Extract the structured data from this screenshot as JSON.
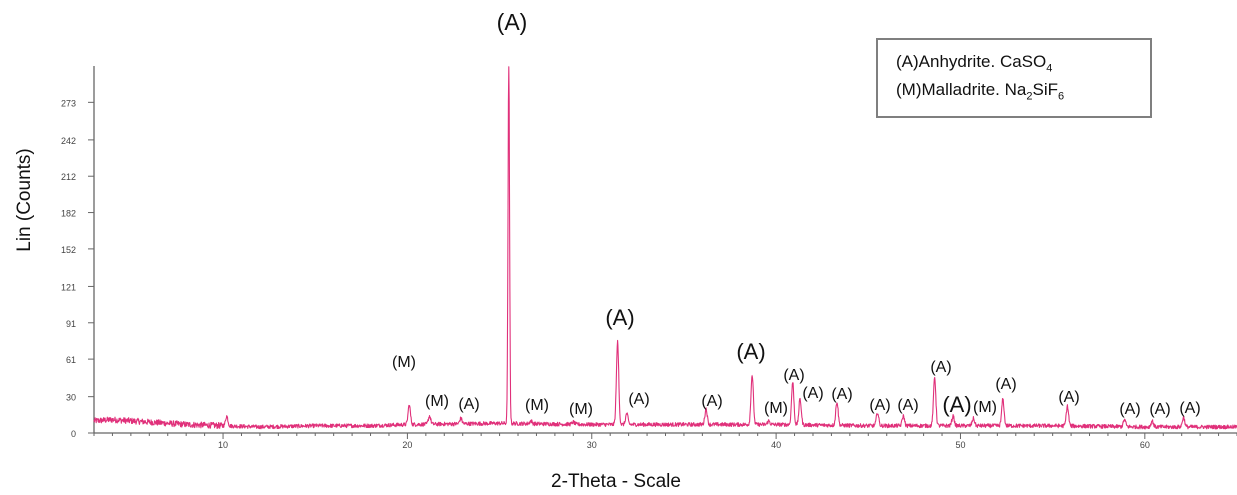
{
  "chart_data": {
    "type": "line",
    "title": "",
    "xlabel": "2-Theta - Scale",
    "ylabel": "Lin (Counts)",
    "xlim": [
      3,
      65
    ],
    "ylim": [
      0,
      303
    ],
    "x_ticks": [
      10,
      20,
      30,
      40,
      50,
      60
    ],
    "y_ticks": [
      0,
      30,
      61,
      91,
      121,
      152,
      182,
      212,
      242,
      273
    ],
    "line_color": "#e0307a",
    "baseline": {
      "points": [
        [
          3,
          10
        ],
        [
          4,
          11
        ],
        [
          6,
          9
        ],
        [
          8,
          7
        ],
        [
          10,
          6
        ],
        [
          12,
          5
        ],
        [
          15,
          6
        ],
        [
          18,
          6
        ],
        [
          20,
          7
        ],
        [
          25,
          8
        ],
        [
          30,
          7
        ],
        [
          35,
          7
        ],
        [
          40,
          7
        ],
        [
          45,
          6
        ],
        [
          50,
          6
        ],
        [
          55,
          6
        ],
        [
          60,
          5
        ],
        [
          65,
          5
        ]
      ]
    },
    "peaks": [
      {
        "x": 10.2,
        "y": 14
      },
      {
        "x": 20.1,
        "y": 23,
        "label": "(M)"
      },
      {
        "x": 21.2,
        "y": 14,
        "label": "(M)"
      },
      {
        "x": 22.9,
        "y": 12,
        "label": "(A)"
      },
      {
        "x": 25.5,
        "y": 303,
        "label": "(A)"
      },
      {
        "x": 26.7,
        "y": 10,
        "label": "(M)"
      },
      {
        "x": 29.0,
        "y": 9,
        "label": "(M)"
      },
      {
        "x": 31.4,
        "y": 75,
        "label": "(A)"
      },
      {
        "x": 31.9,
        "y": 16,
        "label": "(A)"
      },
      {
        "x": 36.2,
        "y": 20,
        "label": "(A)"
      },
      {
        "x": 38.7,
        "y": 48,
        "label": "(A)"
      },
      {
        "x": 39.6,
        "y": 10,
        "label": "(M)"
      },
      {
        "x": 40.9,
        "y": 42,
        "label": "(A)"
      },
      {
        "x": 41.3,
        "y": 28,
        "label": "(A)"
      },
      {
        "x": 43.3,
        "y": 26,
        "label": "(A)"
      },
      {
        "x": 45.5,
        "y": 17,
        "label": "(A)"
      },
      {
        "x": 46.9,
        "y": 14,
        "label": "(A)"
      },
      {
        "x": 48.6,
        "y": 46,
        "label": "(A)"
      },
      {
        "x": 49.6,
        "y": 14,
        "label": "(A)"
      },
      {
        "x": 50.7,
        "y": 12,
        "label": "(M)"
      },
      {
        "x": 52.3,
        "y": 28,
        "label": "(A)"
      },
      {
        "x": 55.8,
        "y": 22,
        "label": "(A)"
      },
      {
        "x": 58.9,
        "y": 11,
        "label": "(A)"
      },
      {
        "x": 60.4,
        "y": 10,
        "label": "(A)"
      },
      {
        "x": 62.1,
        "y": 13,
        "label": "(A)"
      }
    ],
    "legend": [
      {
        "marker": "(A)",
        "name": "Anhydrite. ",
        "formula": [
          {
            "t": "CaSO"
          },
          {
            "t": "4",
            "sub": true
          }
        ]
      },
      {
        "marker": "(M)",
        "name": "Malladrite. ",
        "formula": [
          {
            "t": "Na"
          },
          {
            "t": "2",
            "sub": true
          },
          {
            "t": "SiF"
          },
          {
            "t": "6",
            "sub": true
          }
        ]
      }
    ],
    "legend_position": "top-right",
    "grid": false
  }
}
